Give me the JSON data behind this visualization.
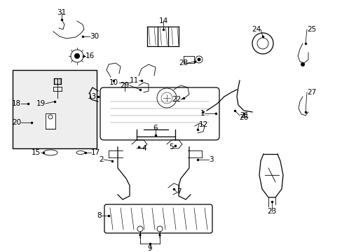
{
  "bg_color": "#ffffff",
  "figsize": [
    4.89,
    3.6
  ],
  "dpi": 100,
  "lw_main": 0.9,
  "lw_thin": 0.6,
  "fs_label": 7.5
}
